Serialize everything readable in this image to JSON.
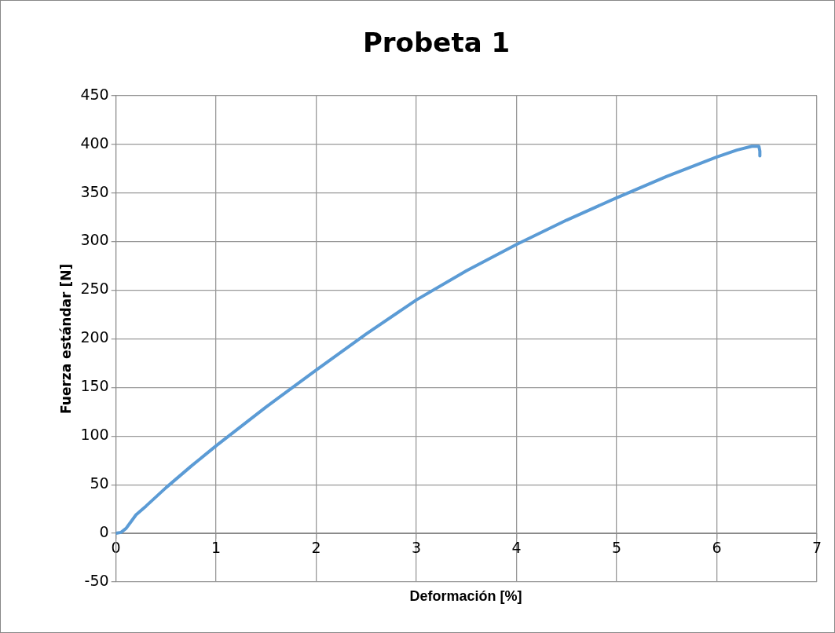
{
  "chart_data": {
    "type": "line",
    "title": "Probeta 1",
    "xlabel": "Deformación [%]",
    "ylabel": "Fuerza estándar [N]",
    "x": [
      0,
      0.05,
      0.1,
      0.15,
      0.2,
      0.3,
      0.5,
      0.75,
      1,
      1.5,
      2,
      2.5,
      3,
      3.5,
      4,
      4.5,
      5,
      5.5,
      6,
      6.2,
      6.35,
      6.42,
      6.43,
      6.43
    ],
    "series": [
      {
        "color": "#5b9bd5",
        "values": [
          0,
          1,
          5,
          12,
          19,
          28,
          47,
          69,
          90,
          130,
          168,
          205,
          240,
          270,
          297,
          322,
          345,
          367,
          387,
          394,
          398,
          398,
          393,
          388
        ]
      }
    ],
    "xlim": [
      0,
      7
    ],
    "xticks": [
      0,
      1,
      2,
      3,
      4,
      5,
      6,
      7
    ],
    "ylim": [
      -50,
      450
    ],
    "yticks": [
      -50,
      0,
      50,
      100,
      150,
      200,
      250,
      300,
      350,
      400,
      450
    ],
    "grid": true,
    "legend": false,
    "marker": "none",
    "line_style": "solid"
  }
}
